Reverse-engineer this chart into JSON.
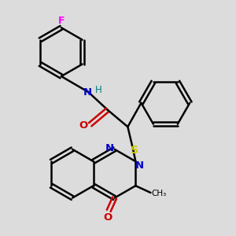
{
  "background_color": "#dcdcdc",
  "atom_colors": {
    "C": "#000000",
    "N": "#0000cc",
    "O": "#cc0000",
    "S": "#cccc00",
    "F": "#ff00ff",
    "H": "#008080"
  },
  "bond_color": "#000000",
  "bond_width": 1.8,
  "figsize": [
    3.0,
    3.0
  ],
  "dpi": 100
}
